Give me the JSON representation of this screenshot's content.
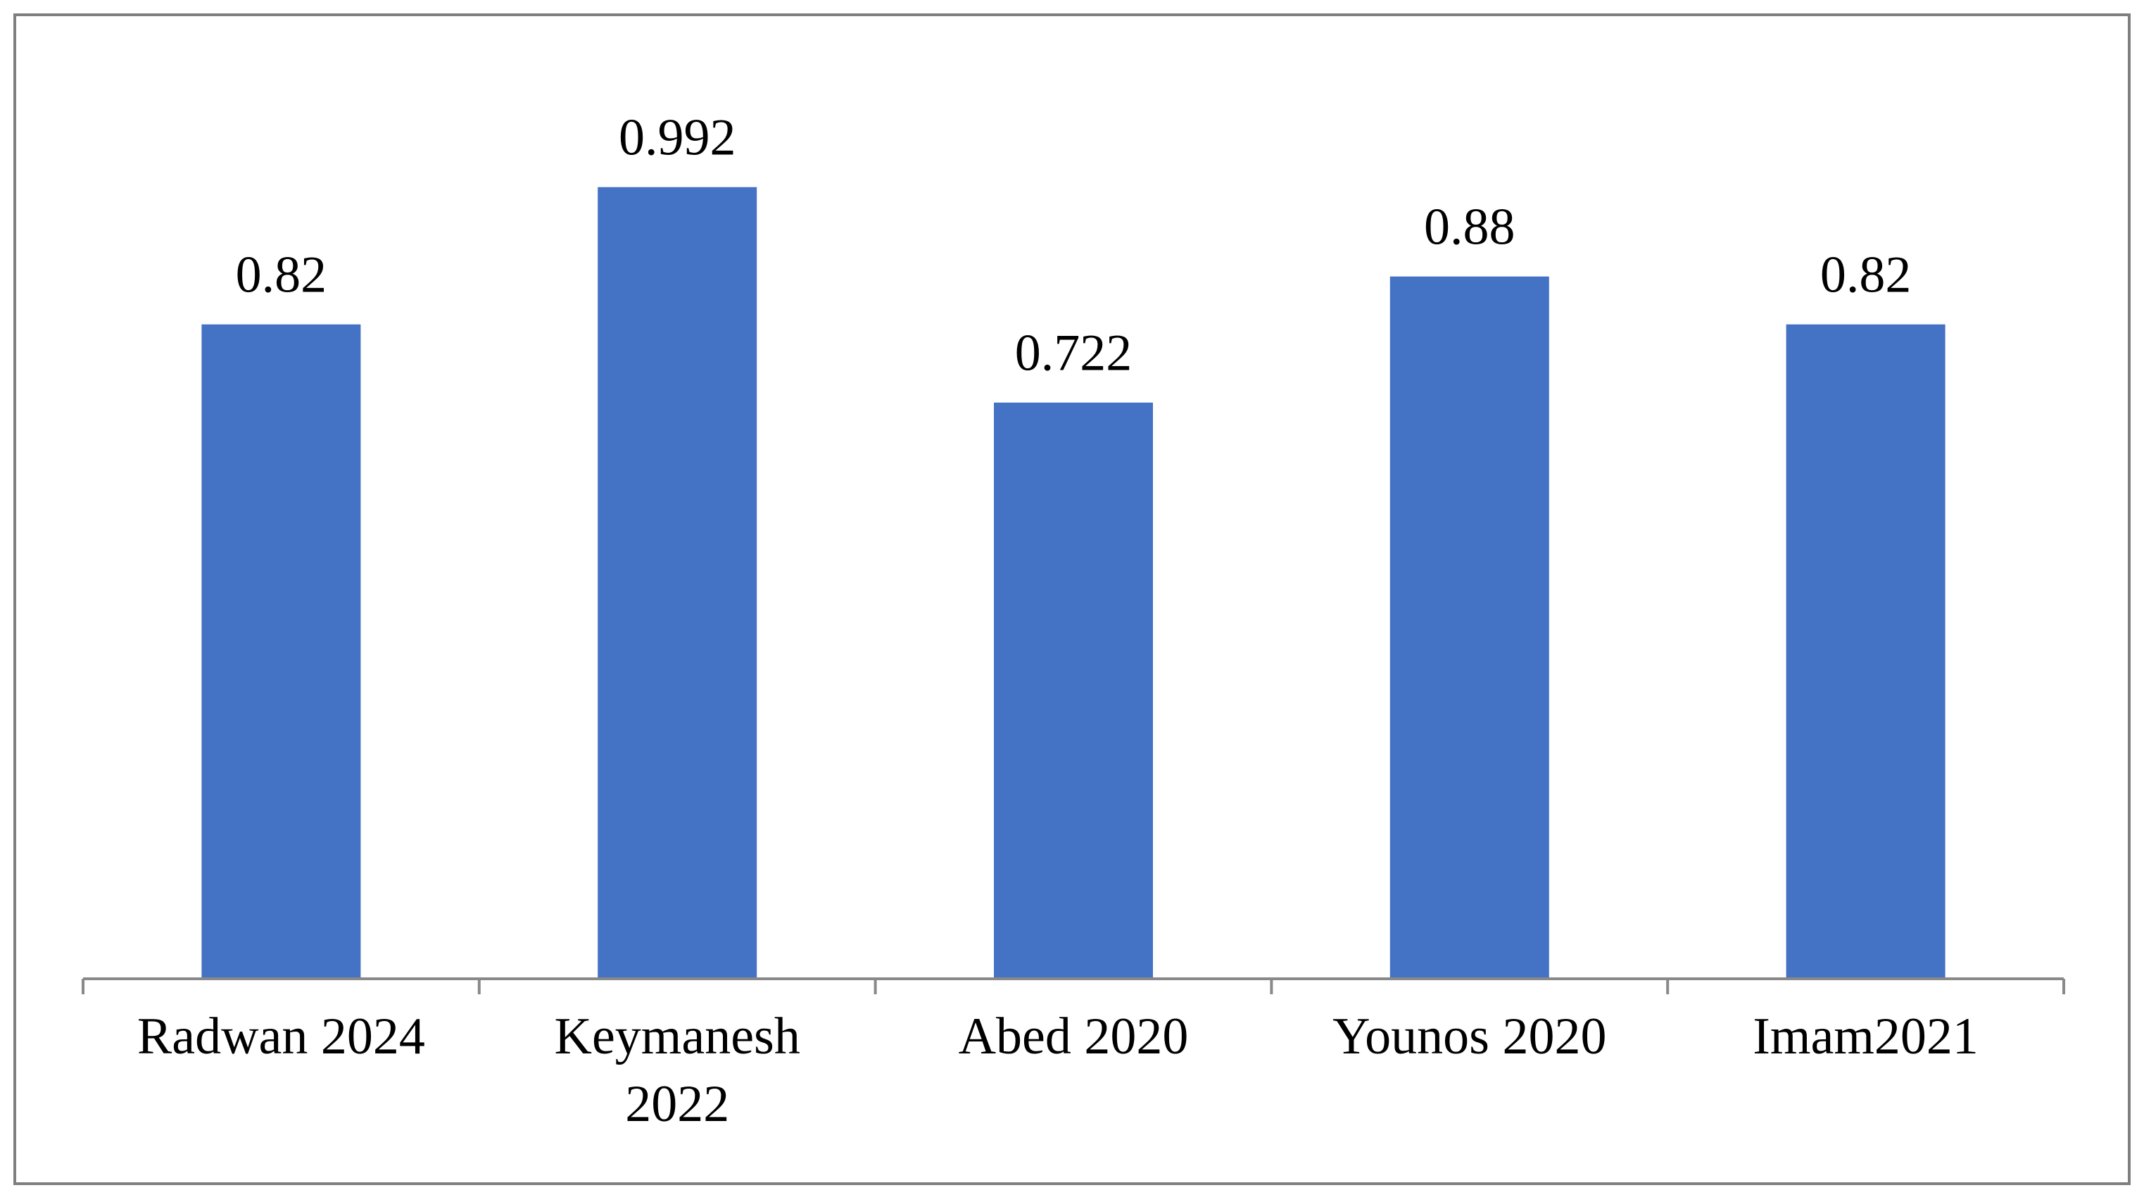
{
  "chart_data": {
    "type": "bar",
    "title": "",
    "xlabel": "",
    "ylabel": "",
    "categories": [
      [
        "Radwan 2024"
      ],
      [
        "Keymanesh",
        "2022"
      ],
      [
        "Abed 2020"
      ],
      [
        "Younos 2020"
      ],
      [
        "Imam2021"
      ]
    ],
    "values": [
      0.82,
      0.992,
      0.722,
      0.88,
      0.82
    ],
    "value_labels": [
      "0.82",
      "0.992",
      "0.722",
      "0.88",
      "0.82"
    ],
    "ylim": [
      0,
      1.2
    ],
    "grid": false,
    "legend": "none",
    "colors": {
      "bar": "#4472C4",
      "axis": "#898989",
      "border": "#7f7f7f",
      "text": "#000000"
    }
  }
}
